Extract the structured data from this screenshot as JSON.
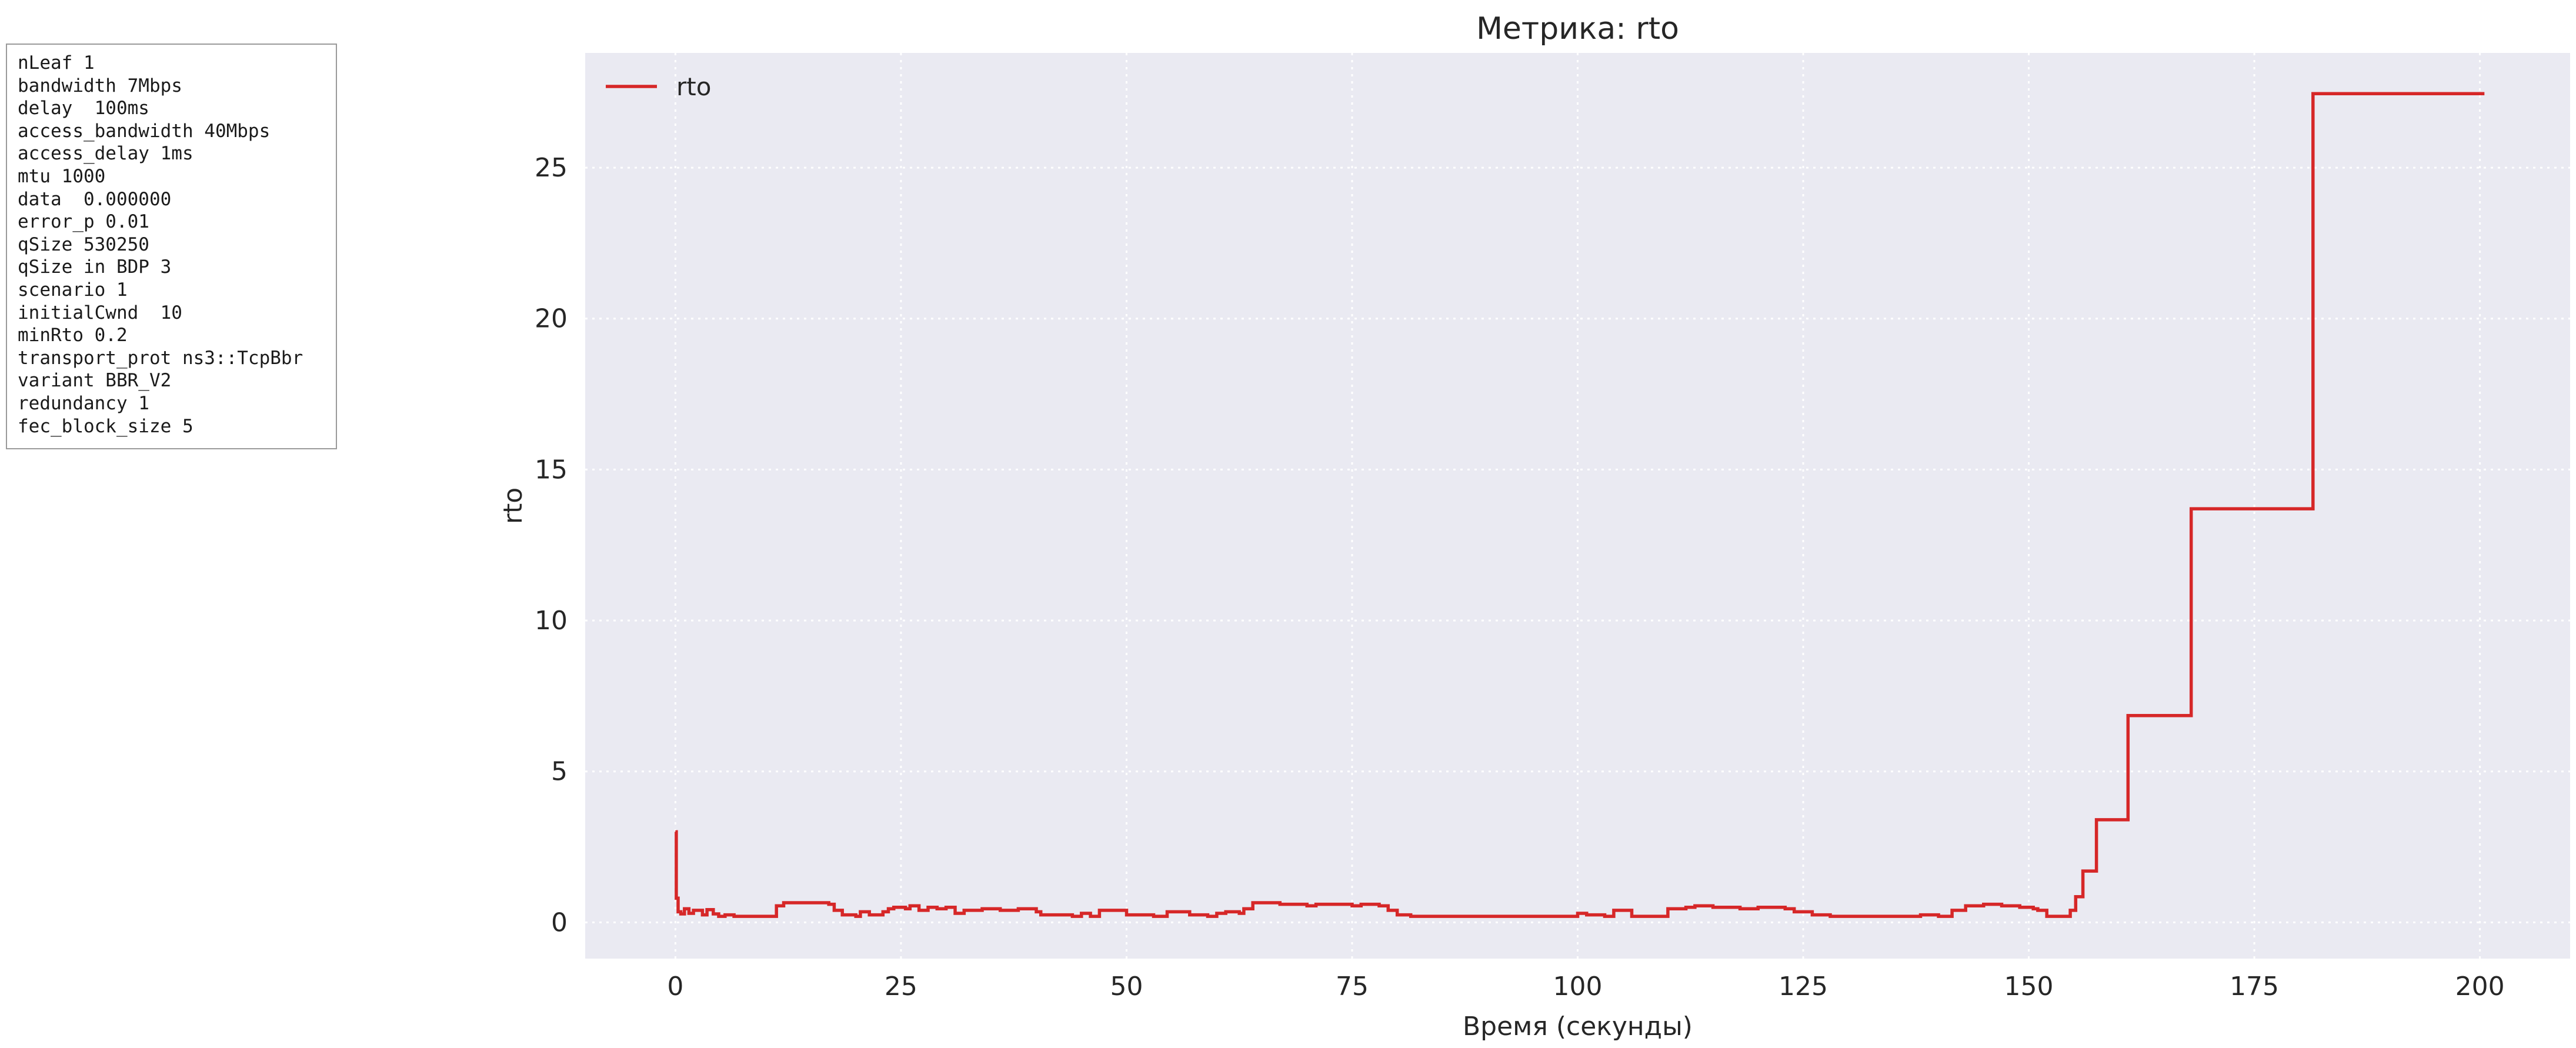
{
  "params_box": {
    "lines": [
      "nLeaf 1",
      "bandwidth 7Mbps",
      "delay  100ms",
      "access_bandwidth 40Mbps",
      "access_delay 1ms",
      "mtu 1000",
      "data  0.000000",
      "error_p 0.01",
      "qSize 530250",
      "qSize in BDP 3",
      "scenario 1",
      "initialCwnd  10",
      "minRto 0.2",
      "transport_prot ns3::TcpBbr",
      "variant BBR_V2",
      "redundancy 1",
      "fec_block_size 5"
    ]
  },
  "chart_data": {
    "type": "line",
    "title": "Метрика: rto",
    "xlabel": "Время (секунды)",
    "ylabel": "rto",
    "xlim": [
      -10,
      210
    ],
    "ylim": [
      -1.2,
      28.8
    ],
    "xticks": [
      0,
      25,
      50,
      75,
      100,
      125,
      150,
      175,
      200
    ],
    "yticks": [
      0,
      5,
      10,
      15,
      20,
      25
    ],
    "grid": true,
    "grid_style": "dotted",
    "legend": "top-left",
    "colors": {
      "background": "#eaeaf2",
      "grid": "#ffffff",
      "line": "#d62728",
      "text": "#262626"
    },
    "series": [
      {
        "name": "rto",
        "color": "#d62728",
        "step": true,
        "x": [
          0,
          0.1,
          0.3,
          0.6,
          1.0,
          1.5,
          2.0,
          3.0,
          3.5,
          4.2,
          4.8,
          5.5,
          6.5,
          10.5,
          11.2,
          12.0,
          17.0,
          17.6,
          18.5,
          20.0,
          20.5,
          21.5,
          23.0,
          23.6,
          24.2,
          25.5,
          26.0,
          27.0,
          28.0,
          29.0,
          30.0,
          31.0,
          32.0,
          34.0,
          36.0,
          38.0,
          40.0,
          40.5,
          44.0,
          45.0,
          46.0,
          47.0,
          50.0,
          53.0,
          54.5,
          57.0,
          59.0,
          60.0,
          61.0,
          62.5,
          63.0,
          64.0,
          67.0,
          70.0,
          71.0,
          75.0,
          76.0,
          78.0,
          79.0,
          80.0,
          81.5,
          82.0,
          85.0,
          95.0,
          99.0,
          100.0,
          101.0,
          103.0,
          104.0,
          106.0,
          109.0,
          110.0,
          112.0,
          113.0,
          115.0,
          118.0,
          120.0,
          123.0,
          124.0,
          126.0,
          128.0,
          130.0,
          137.0,
          138.0,
          140.0,
          141.5,
          143.0,
          145.0,
          147.0,
          149.0,
          150.5,
          151.0,
          152.0,
          154.0,
          154.6,
          155.2,
          156.0,
          157.5,
          161.0,
          168.0,
          181.5,
          200.5
        ],
        "values": [
          3.0,
          0.8,
          0.35,
          0.28,
          0.45,
          0.3,
          0.4,
          0.25,
          0.42,
          0.28,
          0.2,
          0.25,
          0.2,
          0.2,
          0.55,
          0.65,
          0.6,
          0.4,
          0.25,
          0.2,
          0.35,
          0.25,
          0.35,
          0.45,
          0.5,
          0.45,
          0.55,
          0.4,
          0.5,
          0.45,
          0.5,
          0.3,
          0.4,
          0.45,
          0.4,
          0.45,
          0.35,
          0.25,
          0.2,
          0.3,
          0.2,
          0.4,
          0.25,
          0.2,
          0.35,
          0.25,
          0.2,
          0.3,
          0.35,
          0.3,
          0.45,
          0.65,
          0.6,
          0.55,
          0.6,
          0.55,
          0.6,
          0.55,
          0.4,
          0.25,
          0.2,
          0.2,
          0.2,
          0.2,
          0.2,
          0.3,
          0.25,
          0.2,
          0.4,
          0.2,
          0.2,
          0.45,
          0.5,
          0.55,
          0.5,
          0.45,
          0.5,
          0.45,
          0.35,
          0.25,
          0.2,
          0.2,
          0.2,
          0.25,
          0.2,
          0.4,
          0.55,
          0.6,
          0.55,
          0.5,
          0.45,
          0.4,
          0.2,
          0.2,
          0.4,
          0.85,
          1.7,
          3.4,
          6.85,
          13.7,
          27.45,
          27.45
        ]
      }
    ]
  }
}
